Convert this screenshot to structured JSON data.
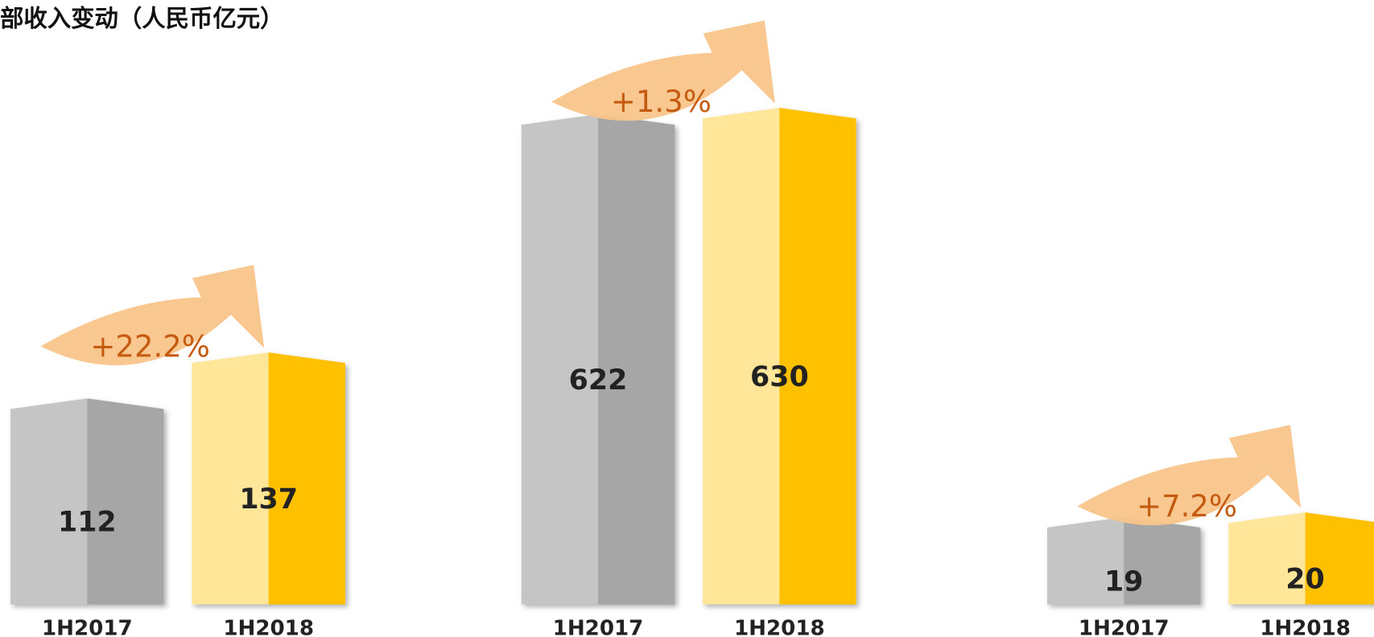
{
  "title": "部收入变动（人民币亿元）",
  "chart_data": [
    {
      "type": "bar",
      "categories": [
        "1H2017",
        "1H2018"
      ],
      "values": [
        112,
        137
      ],
      "colors": [
        "#a6a6a6",
        "#ffc000"
      ],
      "ylim": [
        0,
        300
      ],
      "annotation": "+22.2%"
    },
    {
      "type": "bar",
      "categories": [
        "1H2017",
        "1H2018"
      ],
      "values": [
        622,
        630
      ],
      "colors": [
        "#a6a6a6",
        "#ffc000"
      ],
      "ylim": [
        0,
        700
      ],
      "annotation": "+1.3%"
    },
    {
      "type": "bar",
      "categories": [
        "1H2017",
        "1H2018"
      ],
      "values": [
        19,
        20
      ],
      "colors": [
        "#a6a6a6",
        "#ffc000"
      ],
      "ylim": [
        0,
        120
      ],
      "annotation": "+7.2%"
    }
  ]
}
